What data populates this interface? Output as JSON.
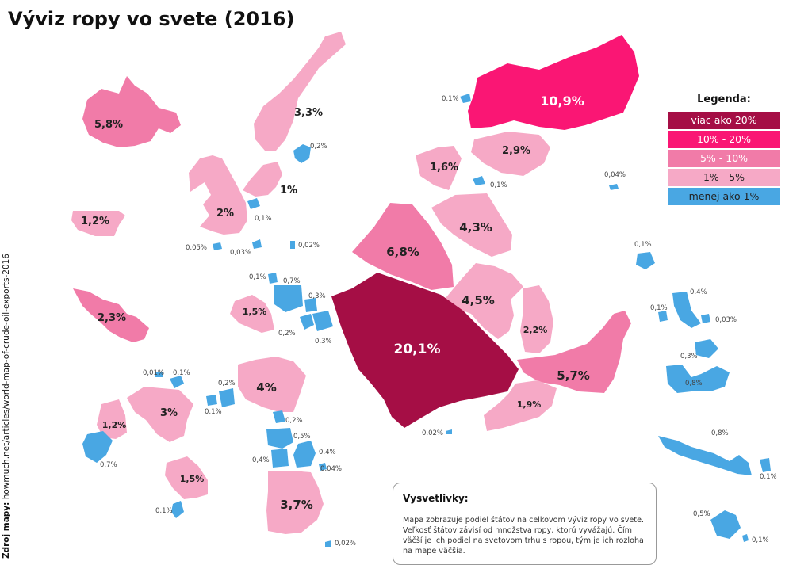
{
  "title": "Výviz ropy vo svete (2016)",
  "source": {
    "label": "Zdroj mapy:",
    "value": " howmuch.net/articles/world-map-of-crude-oil-exports-2016"
  },
  "legend": {
    "title": "Legenda:",
    "items": [
      {
        "label": "viac ako 20%",
        "color": "#a50e45",
        "text_color": "#ffffff"
      },
      {
        "label": "10% - 20%",
        "color": "#fa1674",
        "text_color": "#ffffff"
      },
      {
        "label": "5% - 10%",
        "color": "#f17ba8",
        "text_color": "#ffffff"
      },
      {
        "label": "1% - 5%",
        "color": "#f6a9c6",
        "text_color": "#222222"
      },
      {
        "label": "menej ako 1%",
        "color": "#49a7e3",
        "text_color": "#222222"
      }
    ]
  },
  "explanation": {
    "title": "Vysvetlivky:",
    "text": "Mapa zobrazuje podiel štátov na celkovom výviz ropy vo svete. Veľkosť štátov závisí od množstva ropy, ktorú vyvážajú. Čím väčší je ich podiel na svetovom trhu s ropou, tým je ich rozloha na mape väčšia."
  },
  "map_labels": {
    "canada": "5,8%",
    "usa": "1,2%",
    "mexico": "2,3%",
    "norway": "3,3%",
    "uk": "2%",
    "denmark": "1%",
    "russia": "10,9%",
    "kazakhstan": "2,9%",
    "azerbaijan": "1,6%",
    "iraq": "6,8%",
    "iran": "4,3%",
    "kuwait": "4,5%",
    "saudi": "20,1%",
    "qatar": "2,2%",
    "uae": "5,7%",
    "oman": "1,9%",
    "algeria": "1,5%",
    "nigeria": "4%",
    "angola": "3,7%",
    "venezuela": "3%",
    "colombia": "1,2%",
    "brazil": "1,5%"
  },
  "small_labels": {
    "a": "0,1%",
    "b": "0,2%",
    "c": "0,1%",
    "d": "0,04%",
    "e": "0,1%",
    "f": "0,05%",
    "g": "0,03%",
    "h": "0,02%",
    "i": "0,1%",
    "j": "0,7%",
    "k": "0,3%",
    "l": "0,2%",
    "m": "0,3%",
    "n": "0,1%",
    "o": "0,1%",
    "p": "0,4%",
    "q": "0,03%",
    "r": "0,3%",
    "s": "0,8%",
    "t": "0,01%",
    "u": "0,1%",
    "v": "0,2%",
    "w": "0,1%",
    "x": "0,2%",
    "y": "0,5%",
    "z": "0,4%",
    "aa": "0,4%",
    "ab": "0,04%",
    "ac": "0,02%",
    "ad": "0,7%",
    "ae": "0,1%",
    "af": "0,8%",
    "ag": "0,1%",
    "ah": "0,5%",
    "ai": "0,1%",
    "aj": "0,02%"
  }
}
